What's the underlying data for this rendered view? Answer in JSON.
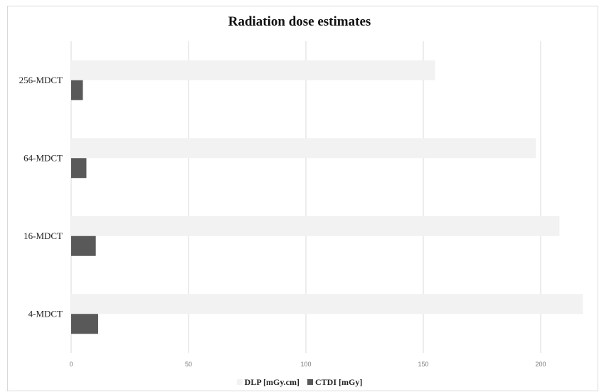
{
  "chart_data": {
    "type": "bar",
    "orientation": "horizontal",
    "title": "Radiation dose estimates",
    "categories": [
      "256-MDCT",
      "64-MDCT",
      "16-MDCT",
      "4-MDCT"
    ],
    "series": [
      {
        "name": "DLP [mGy.cm]",
        "values": [
          155,
          198,
          208,
          218
        ],
        "color": "#f2f2f2"
      },
      {
        "name": "CTDI [mGy]",
        "values": [
          5,
          6.5,
          10.5,
          11.5
        ],
        "color": "#595959"
      }
    ],
    "xticks": [
      0,
      50,
      100,
      150,
      200
    ],
    "xlim": [
      0,
      220
    ],
    "grid": true,
    "legend_position": "bottom"
  }
}
